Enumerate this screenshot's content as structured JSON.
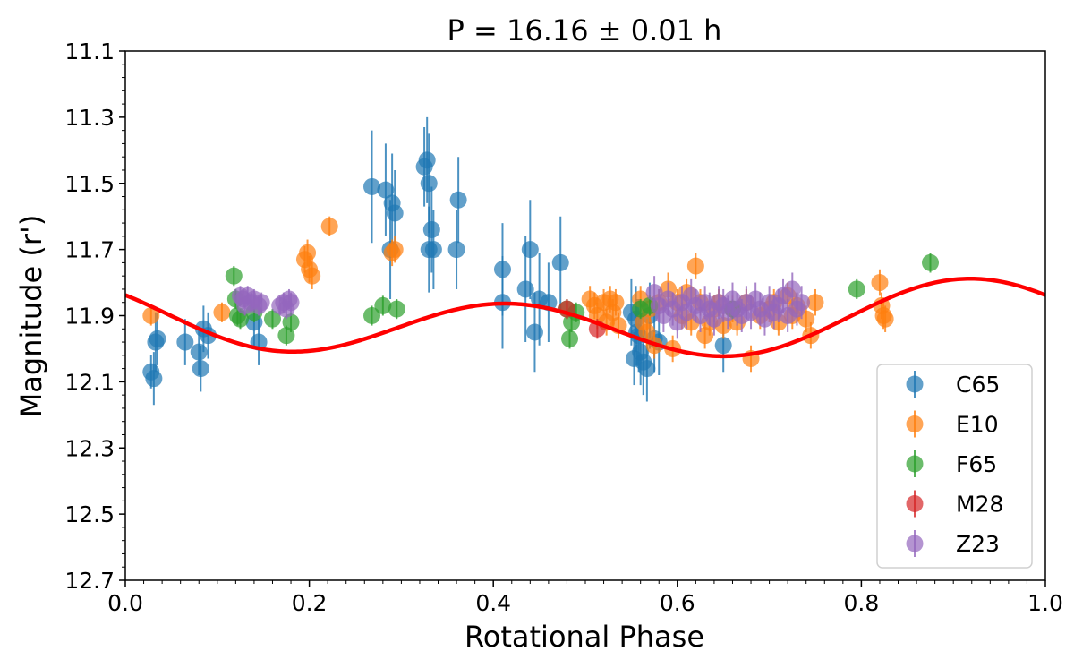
{
  "chart_data": {
    "type": "scatter",
    "title": "P = 16.16 ± 0.01 h",
    "xlabel": "Rotational Phase",
    "ylabel": "Magnitude (r')",
    "xlim": [
      0.0,
      1.0
    ],
    "ylim": [
      12.7,
      11.1
    ],
    "y_inverted": true,
    "grid": false,
    "legend_position": "lower-right",
    "x_ticks": [
      "0.0",
      "0.2",
      "0.4",
      "0.6",
      "0.8",
      "1.0"
    ],
    "y_ticks": [
      "11.1",
      "11.3",
      "11.5",
      "11.7",
      "11.9",
      "12.1",
      "12.3",
      "12.5",
      "12.7"
    ],
    "fit_curve": {
      "color": "#ff0000",
      "mean": 11.92,
      "harmonics": [
        {
          "n": 1,
          "cos": -0.036,
          "sin": 0.013
        },
        {
          "n": 2,
          "cos": -0.046,
          "sin": 0.082
        }
      ]
    },
    "series": [
      {
        "name": "C65",
        "color": "#1f77b4",
        "points": [
          [
            0.028,
            12.07,
            0.05
          ],
          [
            0.031,
            12.09,
            0.08
          ],
          [
            0.033,
            11.98,
            0.09
          ],
          [
            0.035,
            11.97,
            0.08
          ],
          [
            0.065,
            11.98,
            0.07
          ],
          [
            0.08,
            12.01,
            0.07
          ],
          [
            0.082,
            12.06,
            0.07
          ],
          [
            0.085,
            11.94,
            0.07
          ],
          [
            0.09,
            11.96,
            0.07
          ],
          [
            0.14,
            11.92,
            0.08
          ],
          [
            0.145,
            11.98,
            0.07
          ],
          [
            0.268,
            11.51,
            0.17
          ],
          [
            0.283,
            11.52,
            0.14
          ],
          [
            0.288,
            11.7,
            0.15
          ],
          [
            0.29,
            11.56,
            0.15
          ],
          [
            0.293,
            11.59,
            0.13
          ],
          [
            0.325,
            11.45,
            0.12
          ],
          [
            0.328,
            11.43,
            0.13
          ],
          [
            0.33,
            11.5,
            0.15
          ],
          [
            0.33,
            11.7,
            0.13
          ],
          [
            0.333,
            11.64,
            0.13
          ],
          [
            0.335,
            11.7,
            0.12
          ],
          [
            0.36,
            11.7,
            0.12
          ],
          [
            0.362,
            11.55,
            0.13
          ],
          [
            0.41,
            11.76,
            0.14
          ],
          [
            0.41,
            11.86,
            0.14
          ],
          [
            0.435,
            11.82,
            0.16
          ],
          [
            0.44,
            11.7,
            0.15
          ],
          [
            0.445,
            11.95,
            0.12
          ],
          [
            0.45,
            11.85,
            0.14
          ],
          [
            0.46,
            11.86,
            0.12
          ],
          [
            0.473,
            11.74,
            0.14
          ],
          [
            0.55,
            11.89,
            0.1
          ],
          [
            0.553,
            12.03,
            0.08
          ],
          [
            0.555,
            11.91,
            0.1
          ],
          [
            0.556,
            11.95,
            0.1
          ],
          [
            0.558,
            11.96,
            0.11
          ],
          [
            0.56,
            12.01,
            0.1
          ],
          [
            0.563,
            12.04,
            0.1
          ],
          [
            0.567,
            12.06,
            0.1
          ],
          [
            0.57,
            11.9,
            0.1
          ],
          [
            0.575,
            11.97,
            0.1
          ],
          [
            0.58,
            11.98,
            0.1
          ],
          [
            0.65,
            11.99,
            0.08
          ]
        ]
      },
      {
        "name": "E10",
        "color": "#ff7f0e",
        "points": [
          [
            0.028,
            11.9,
            0.03
          ],
          [
            0.105,
            11.89,
            0.03
          ],
          [
            0.195,
            11.73,
            0.04
          ],
          [
            0.198,
            11.71,
            0.04
          ],
          [
            0.2,
            11.76,
            0.04
          ],
          [
            0.203,
            11.78,
            0.04
          ],
          [
            0.222,
            11.63,
            0.03
          ],
          [
            0.29,
            11.71,
            0.04
          ],
          [
            0.293,
            11.7,
            0.04
          ],
          [
            0.505,
            11.85,
            0.04
          ],
          [
            0.51,
            11.87,
            0.04
          ],
          [
            0.513,
            11.9,
            0.04
          ],
          [
            0.52,
            11.86,
            0.04
          ],
          [
            0.523,
            11.92,
            0.04
          ],
          [
            0.527,
            11.85,
            0.04
          ],
          [
            0.53,
            11.89,
            0.04
          ],
          [
            0.533,
            11.86,
            0.04
          ],
          [
            0.536,
            11.93,
            0.04
          ],
          [
            0.56,
            11.85,
            0.04
          ],
          [
            0.563,
            11.92,
            0.04
          ],
          [
            0.567,
            11.95,
            0.04
          ],
          [
            0.57,
            11.88,
            0.04
          ],
          [
            0.575,
            11.99,
            0.04
          ],
          [
            0.58,
            11.86,
            0.04
          ],
          [
            0.59,
            11.82,
            0.05
          ],
          [
            0.595,
            12.0,
            0.04
          ],
          [
            0.6,
            11.86,
            0.04
          ],
          [
            0.605,
            11.9,
            0.04
          ],
          [
            0.61,
            11.83,
            0.04
          ],
          [
            0.615,
            11.92,
            0.04
          ],
          [
            0.62,
            11.75,
            0.04
          ],
          [
            0.625,
            11.86,
            0.04
          ],
          [
            0.63,
            11.96,
            0.04
          ],
          [
            0.635,
            11.92,
            0.04
          ],
          [
            0.64,
            11.88,
            0.04
          ],
          [
            0.645,
            11.86,
            0.04
          ],
          [
            0.65,
            11.93,
            0.04
          ],
          [
            0.66,
            11.88,
            0.04
          ],
          [
            0.665,
            11.92,
            0.04
          ],
          [
            0.675,
            11.86,
            0.04
          ],
          [
            0.68,
            12.03,
            0.04
          ],
          [
            0.69,
            11.9,
            0.04
          ],
          [
            0.7,
            11.88,
            0.04
          ],
          [
            0.705,
            11.86,
            0.04
          ],
          [
            0.71,
            11.92,
            0.04
          ],
          [
            0.72,
            11.84,
            0.04
          ],
          [
            0.725,
            11.9,
            0.04
          ],
          [
            0.73,
            11.87,
            0.04
          ],
          [
            0.74,
            11.91,
            0.04
          ],
          [
            0.745,
            11.96,
            0.04
          ],
          [
            0.75,
            11.86,
            0.04
          ],
          [
            0.82,
            11.8,
            0.04
          ],
          [
            0.822,
            11.87,
            0.04
          ],
          [
            0.824,
            11.9,
            0.04
          ],
          [
            0.826,
            11.91,
            0.04
          ]
        ]
      },
      {
        "name": "F65",
        "color": "#2ca02c",
        "points": [
          [
            0.118,
            11.78,
            0.03
          ],
          [
            0.12,
            11.85,
            0.03
          ],
          [
            0.122,
            11.9,
            0.03
          ],
          [
            0.125,
            11.91,
            0.03
          ],
          [
            0.14,
            11.89,
            0.03
          ],
          [
            0.16,
            11.91,
            0.03
          ],
          [
            0.175,
            11.96,
            0.03
          ],
          [
            0.18,
            11.92,
            0.03
          ],
          [
            0.268,
            11.9,
            0.03
          ],
          [
            0.28,
            11.87,
            0.03
          ],
          [
            0.295,
            11.88,
            0.03
          ],
          [
            0.48,
            11.88,
            0.03
          ],
          [
            0.483,
            11.97,
            0.03
          ],
          [
            0.485,
            11.92,
            0.03
          ],
          [
            0.49,
            11.89,
            0.03
          ],
          [
            0.56,
            11.88,
            0.03
          ],
          [
            0.57,
            11.87,
            0.03
          ],
          [
            0.66,
            11.88,
            0.03
          ],
          [
            0.795,
            11.82,
            0.03
          ],
          [
            0.875,
            11.74,
            0.03
          ]
        ]
      },
      {
        "name": "M28",
        "color": "#d62728",
        "points": [
          [
            0.48,
            11.88,
            0.03
          ],
          [
            0.513,
            11.94,
            0.03
          ]
        ]
      },
      {
        "name": "Z23",
        "color": "#9467bd",
        "points": [
          [
            0.125,
            11.84,
            0.03
          ],
          [
            0.128,
            11.85,
            0.03
          ],
          [
            0.13,
            11.87,
            0.03
          ],
          [
            0.133,
            11.84,
            0.03
          ],
          [
            0.137,
            11.86,
            0.03
          ],
          [
            0.14,
            11.85,
            0.03
          ],
          [
            0.145,
            11.87,
            0.03
          ],
          [
            0.148,
            11.86,
            0.03
          ],
          [
            0.168,
            11.87,
            0.03
          ],
          [
            0.172,
            11.86,
            0.03
          ],
          [
            0.175,
            11.88,
            0.03
          ],
          [
            0.178,
            11.85,
            0.03
          ],
          [
            0.18,
            11.86,
            0.03
          ],
          [
            0.575,
            11.83,
            0.05
          ],
          [
            0.58,
            11.87,
            0.05
          ],
          [
            0.585,
            11.9,
            0.05
          ],
          [
            0.59,
            11.85,
            0.05
          ],
          [
            0.595,
            11.88,
            0.05
          ],
          [
            0.6,
            11.92,
            0.05
          ],
          [
            0.605,
            11.86,
            0.05
          ],
          [
            0.61,
            11.89,
            0.05
          ],
          [
            0.615,
            11.84,
            0.05
          ],
          [
            0.62,
            11.87,
            0.05
          ],
          [
            0.625,
            11.9,
            0.05
          ],
          [
            0.63,
            11.86,
            0.05
          ],
          [
            0.635,
            11.88,
            0.05
          ],
          [
            0.64,
            11.91,
            0.05
          ],
          [
            0.645,
            11.86,
            0.05
          ],
          [
            0.65,
            11.87,
            0.05
          ],
          [
            0.655,
            11.89,
            0.05
          ],
          [
            0.66,
            11.85,
            0.05
          ],
          [
            0.665,
            11.88,
            0.05
          ],
          [
            0.67,
            11.9,
            0.05
          ],
          [
            0.675,
            11.86,
            0.05
          ],
          [
            0.68,
            11.89,
            0.05
          ],
          [
            0.685,
            11.85,
            0.05
          ],
          [
            0.69,
            11.88,
            0.05
          ],
          [
            0.695,
            11.91,
            0.05
          ],
          [
            0.7,
            11.86,
            0.05
          ],
          [
            0.705,
            11.89,
            0.05
          ],
          [
            0.71,
            11.87,
            0.05
          ],
          [
            0.715,
            11.84,
            0.05
          ],
          [
            0.72,
            11.9,
            0.05
          ],
          [
            0.725,
            11.82,
            0.05
          ],
          [
            0.73,
            11.88,
            0.05
          ],
          [
            0.735,
            11.86,
            0.05
          ]
        ]
      }
    ]
  }
}
